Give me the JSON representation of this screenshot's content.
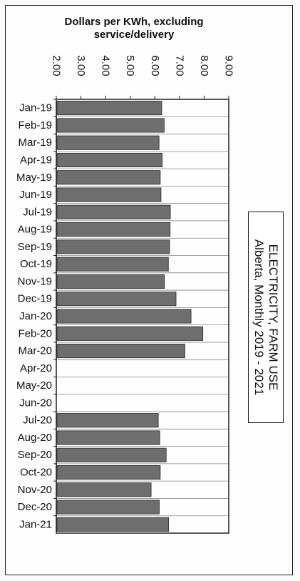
{
  "chart_data": {
    "type": "bar",
    "orientation": "horizontal",
    "title": "ELECTRICITY, FARM USE",
    "subtitle": "Alberta, Monthly 2019 - 2021",
    "ylabel_line1": "Dollars per KWh, excluding",
    "ylabel_line2": "service/delivery",
    "ylim": [
      2,
      9
    ],
    "ticks": [
      "2.00",
      "3.00",
      "4.00",
      "5.00",
      "6.00",
      "7.00",
      "8.00",
      "9.00"
    ],
    "categories": [
      "Jan-19",
      "Feb-19",
      "Mar-19",
      "Apr-19",
      "May-19",
      "Jun-19",
      "Jul-19",
      "Aug-19",
      "Sep-19",
      "Oct-19",
      "Nov-19",
      "Dec-19",
      "Jan-20",
      "Feb-20",
      "Mar-20",
      "Apr-20",
      "May-20",
      "Jun-20",
      "Jul-20",
      "Aug-20",
      "Sep-20",
      "Oct-20",
      "Nov-20",
      "Dec-20",
      "Jan-21"
    ],
    "values": [
      6.28,
      6.38,
      6.17,
      6.3,
      6.22,
      6.25,
      6.63,
      6.62,
      6.6,
      6.55,
      6.39,
      6.86,
      7.47,
      7.95,
      7.22,
      null,
      null,
      null,
      6.14,
      6.2,
      6.46,
      6.22,
      5.85,
      6.18,
      6.56
    ],
    "bar_color": "#6e6e6e",
    "grid": true
  }
}
